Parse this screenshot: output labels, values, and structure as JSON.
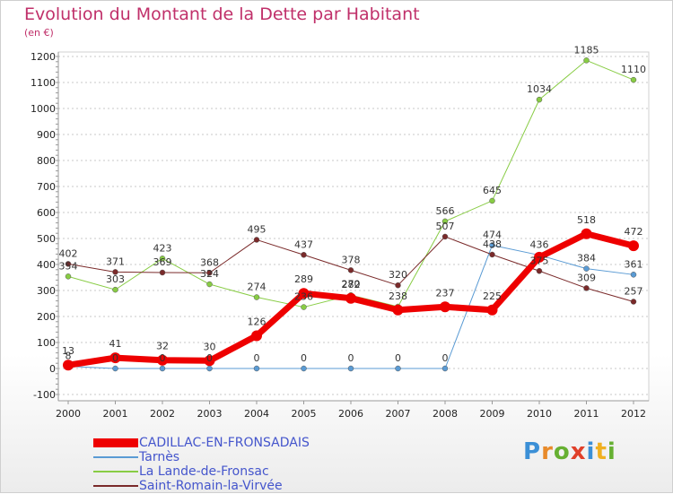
{
  "header": {
    "title": "Evolution du Montant de la Dette par Habitant",
    "unit": "(en €)"
  },
  "logo": {
    "letters": [
      "P",
      "r",
      "o",
      "x",
      "i",
      "t",
      "i"
    ],
    "colors": [
      "#3b8fd6",
      "#e88a2a",
      "#66b032",
      "#e0402a",
      "#3b8fd6",
      "#f0b020",
      "#66b032"
    ]
  },
  "chart_data": {
    "type": "line",
    "title": "Evolution du Montant de la Dette par Habitant",
    "ylabel": "(en €)",
    "xlabel": "",
    "x": [
      "2000",
      "2001",
      "2002",
      "2003",
      "2004",
      "2005",
      "2006",
      "2007",
      "2008",
      "2009",
      "2010",
      "2011",
      "2012"
    ],
    "ylim": [
      -100,
      1200
    ],
    "yticks": [
      -100,
      0,
      100,
      200,
      300,
      400,
      500,
      600,
      700,
      800,
      900,
      1000,
      1100,
      1200
    ],
    "grid": "horizontal-dashed",
    "legend_position": "bottom-left",
    "series": [
      {
        "name": "CADILLAC-EN-FRONSADAIS",
        "color": "#ee0000",
        "width": 7,
        "marker": 6,
        "values": [
          13,
          41,
          32,
          30,
          126,
          289,
          270,
          225,
          237,
          225,
          428,
          518,
          472
        ],
        "labels": [
          "13",
          "41",
          "32",
          "30",
          "126",
          "289",
          "270",
          "",
          "237",
          "225",
          "",
          "518",
          "472"
        ]
      },
      {
        "name": "Tarnès",
        "color": "#5a9bd4",
        "width": 1,
        "marker": 3,
        "values": [
          8,
          0,
          0,
          0,
          0,
          0,
          0,
          0,
          0,
          474,
          436,
          384,
          361
        ],
        "labels": [
          "8",
          "0",
          "0",
          "0",
          "0",
          "0",
          "0",
          "0",
          "0",
          "474",
          "436",
          "384",
          "361"
        ]
      },
      {
        "name": "La Lande-de-Fronsac",
        "color": "#88cc44",
        "width": 1,
        "marker": 3,
        "values": [
          354,
          303,
          423,
          324,
          274,
          236,
          282,
          238,
          566,
          645,
          1034,
          1185,
          1110
        ],
        "labels": [
          "354",
          "303",
          "423",
          "324",
          "274",
          "236",
          "282",
          "238",
          "566",
          "645",
          "1034",
          "1185",
          "1110"
        ]
      },
      {
        "name": "Saint-Romain-la-Virvée",
        "color": "#7a2a2a",
        "width": 1,
        "marker": 3,
        "values": [
          402,
          371,
          369,
          368,
          495,
          437,
          378,
          320,
          507,
          438,
          375,
          309,
          257
        ],
        "labels": [
          "402",
          "371",
          "369",
          "368",
          "495",
          "437",
          "378",
          "320",
          "507",
          "438",
          "375",
          "309",
          "257"
        ]
      }
    ]
  }
}
